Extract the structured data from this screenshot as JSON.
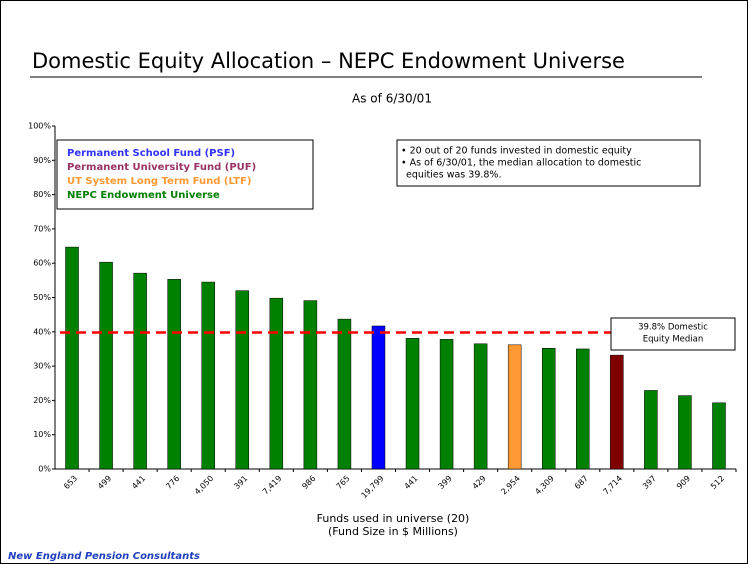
{
  "chart_data": {
    "type": "bar",
    "title": "Domestic Equity Allocation – NEPC Endowment Universe",
    "subtitle": "As of 6/30/01",
    "x_label": [
      "Funds used in universe  (20)",
      "(Fund Size in $ Millions)"
    ],
    "footer": "New England Pension Consultants",
    "categories": [
      "653",
      "499",
      "441",
      "776",
      "4,050",
      "391",
      "7,419",
      "986",
      "765",
      "19,799",
      "441",
      "399",
      "429",
      "2,954",
      "4,309",
      "687",
      "7,714",
      "397",
      "909",
      "512"
    ],
    "values": [
      64.7,
      60.3,
      57.1,
      55.3,
      54.5,
      52.0,
      49.8,
      49.1,
      43.7,
      41.7,
      38.1,
      37.8,
      36.5,
      36.2,
      35.2,
      35.0,
      33.2,
      22.9,
      21.4,
      19.3
    ],
    "colors": [
      "#008000",
      "#008000",
      "#008000",
      "#008000",
      "#008000",
      "#008000",
      "#008000",
      "#008000",
      "#008000",
      "#0000ff",
      "#008000",
      "#008000",
      "#008000",
      "#ff9933",
      "#008000",
      "#008000",
      "#800000",
      "#008000",
      "#008000",
      "#008000"
    ],
    "legend": [
      {
        "name": "Permanent School Fund (PSF)",
        "color": "#3333ff"
      },
      {
        "name": "Permanent University Fund (PUF)",
        "color": "#993366"
      },
      {
        "name": "UT System Long Term Fund (LTF)",
        "color": "#ff9933"
      },
      {
        "name": "NEPC Endowment Universe",
        "color": "#008000"
      }
    ],
    "note": [
      "• 20 out of 20 funds invested in domestic equity",
      "• As of 6/30/01, the median allocation to domestic",
      "equities was 39.8%."
    ],
    "median": {
      "value": 39.8,
      "label": [
        "39.8% Domestic",
        "Equity Median"
      ],
      "color": "#ff0000"
    },
    "ylim": [
      0,
      100
    ],
    "yticks": [
      {
        "value": 0,
        "label": "0%"
      },
      {
        "value": 10,
        "label": "10%"
      },
      {
        "value": 20,
        "label": "20%"
      },
      {
        "value": 30,
        "label": "30%"
      },
      {
        "value": 40,
        "label": "40%"
      },
      {
        "value": 50,
        "label": "50%"
      },
      {
        "value": 60,
        "label": "60%"
      },
      {
        "value": 70,
        "label": "70%"
      },
      {
        "value": 80,
        "label": "80%"
      },
      {
        "value": 90,
        "label": "90%"
      },
      {
        "value": 100,
        "label": "100%"
      }
    ]
  }
}
